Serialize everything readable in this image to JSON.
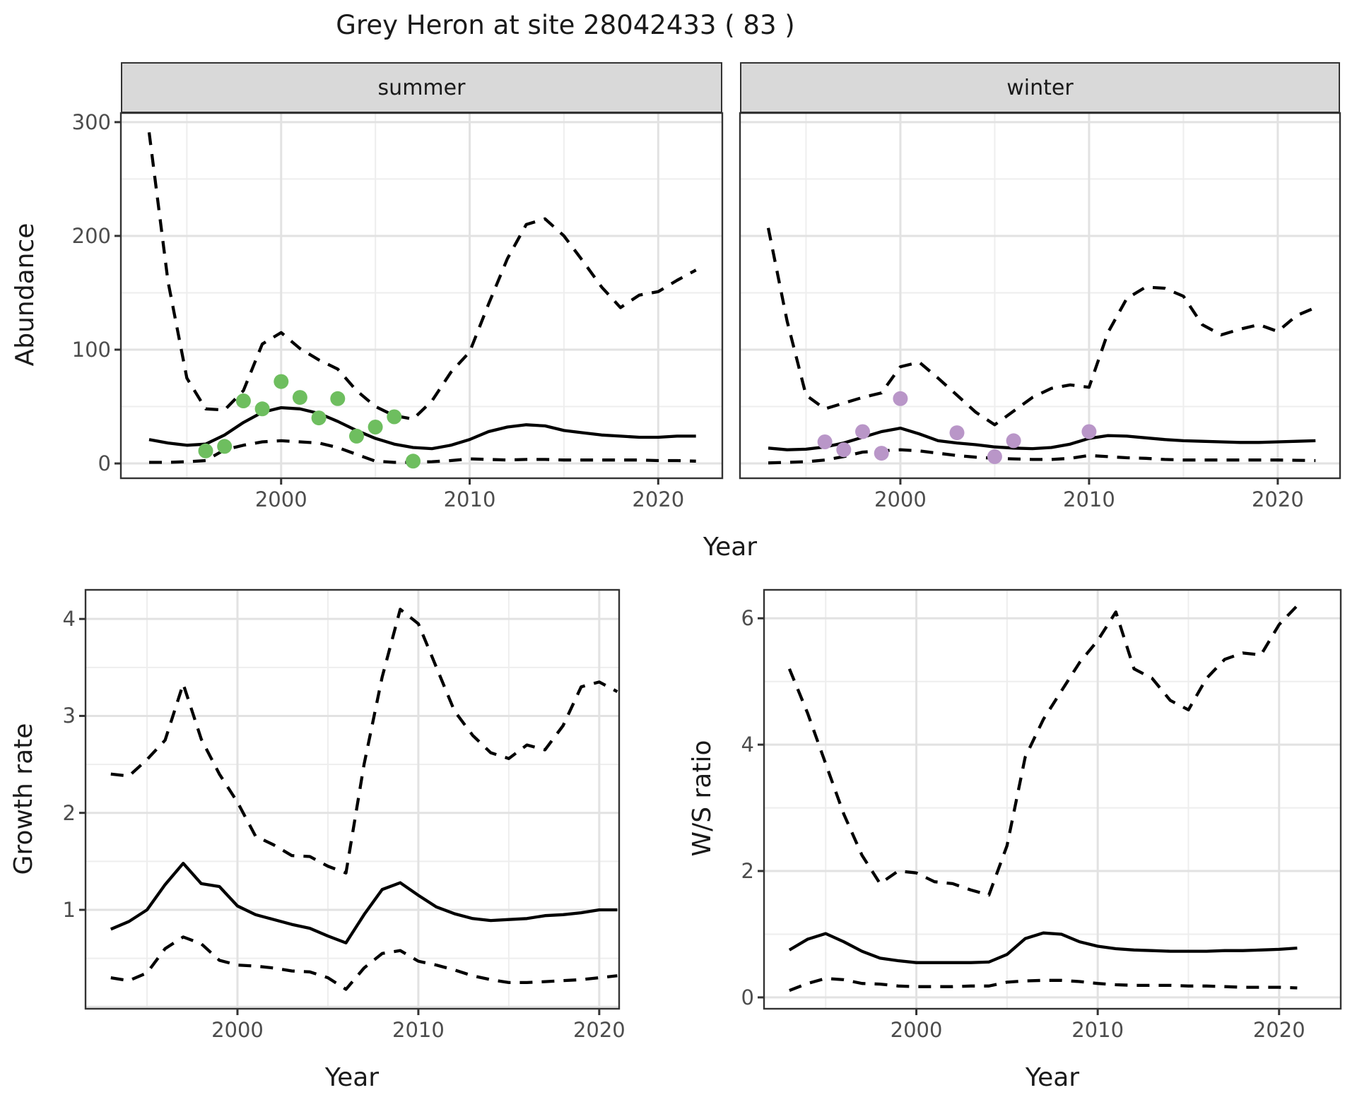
{
  "title": "Grey Heron at site 28042433 ( 83 )",
  "axes": {
    "abundance_label": "Abundance",
    "growth_label": "Growth rate",
    "ws_label": "W/S ratio",
    "year_label": "Year"
  },
  "facets": {
    "summer": "summer",
    "winter": "winter"
  },
  "colors": {
    "summer_points": "#6ebe5f",
    "winter_points": "#b996c8",
    "fit_line": "#000000",
    "ci_line": "#000000",
    "grid_major": "#e2e2e2",
    "grid_minor": "#eeeeee",
    "panel_border": "#333333",
    "strip_bg": "#d9d9d9",
    "tick_text": "#4d4d4d",
    "tick_mark": "#333333"
  },
  "chart_data": [
    {
      "id": "abundance_summer",
      "type": "line",
      "facet": "summer",
      "xlabel": "Year",
      "ylabel": "Abundance",
      "xticks": [
        2000,
        2010,
        2020
      ],
      "xminor": [
        1995,
        2005,
        2015
      ],
      "yticks": [
        0,
        100,
        200,
        300
      ],
      "ygrid": [
        0,
        100,
        200,
        300
      ],
      "yminor": [
        50,
        150,
        250
      ],
      "xlim": [
        1991.5,
        2023.4
      ],
      "ylim": [
        -13,
        308
      ],
      "years": [
        1993,
        1994,
        1995,
        1996,
        1997,
        1998,
        1999,
        2000,
        2001,
        2002,
        2003,
        2004,
        2005,
        2006,
        2007,
        2008,
        2009,
        2010,
        2011,
        2012,
        2013,
        2014,
        2015,
        2016,
        2017,
        2018,
        2019,
        2020,
        2021,
        2022
      ],
      "series": [
        {
          "name": "fitted",
          "style": "solid",
          "values": [
            21,
            18,
            16,
            17,
            25,
            36,
            45,
            49,
            48,
            44,
            37,
            29,
            22,
            17,
            14,
            13,
            16,
            21,
            28,
            32,
            34,
            33,
            29,
            27,
            25,
            24,
            23,
            23,
            24,
            24
          ]
        },
        {
          "name": "upper-ci",
          "style": "dashed",
          "values": [
            291,
            160,
            75,
            48,
            47,
            64,
            105,
            115,
            101,
            91,
            83,
            64,
            50,
            42,
            39,
            55,
            80,
            98,
            140,
            180,
            210,
            215,
            200,
            178,
            155,
            137,
            148,
            151,
            161,
            170
          ]
        },
        {
          "name": "lower-ci",
          "style": "dashed",
          "values": [
            1,
            1,
            1.5,
            2.5,
            12,
            16,
            19,
            20,
            19,
            18,
            14,
            8,
            2,
            1,
            1,
            1.5,
            2.5,
            4,
            3.5,
            3,
            3.5,
            3.5,
            3,
            3,
            3,
            3,
            3,
            2.5,
            2.5,
            2
          ]
        }
      ],
      "points": {
        "name": "observed-counts-summer",
        "color_key": "summer_points",
        "years": [
          1996,
          1997,
          1998,
          1999,
          2000,
          2001,
          2002,
          2003,
          2004,
          2005,
          2006,
          2007
        ],
        "values": [
          11,
          15,
          55,
          48,
          72,
          58,
          40,
          57,
          24,
          32,
          41,
          2
        ]
      }
    },
    {
      "id": "abundance_winter",
      "type": "line",
      "facet": "winter",
      "xlabel": "Year",
      "ylabel": "Abundance",
      "xticks": [
        2000,
        2010,
        2020
      ],
      "xminor": [
        1995,
        2005,
        2015
      ],
      "yticks": [],
      "ygrid": [
        0,
        100,
        200,
        300
      ],
      "yminor": [
        50,
        150,
        250
      ],
      "xlim": [
        1991.5,
        2023.3
      ],
      "ylim": [
        -13,
        308
      ],
      "years": [
        1993,
        1994,
        1995,
        1996,
        1997,
        1998,
        1999,
        2000,
        2001,
        2002,
        2003,
        2004,
        2005,
        2006,
        2007,
        2008,
        2009,
        2010,
        2011,
        2012,
        2013,
        2014,
        2015,
        2016,
        2017,
        2018,
        2019,
        2020,
        2021,
        2022
      ],
      "series": [
        {
          "name": "fitted",
          "style": "solid",
          "values": [
            13.5,
            12,
            12.5,
            14.5,
            18,
            23,
            28,
            31,
            26,
            20,
            18,
            16.5,
            14.5,
            13.5,
            13,
            14,
            17,
            22,
            24.5,
            24,
            22.5,
            21,
            20,
            19.5,
            19,
            18.5,
            18.5,
            19,
            19.5,
            20
          ]
        },
        {
          "name": "upper-ci",
          "style": "dashed",
          "values": [
            207,
            125,
            60,
            48,
            53,
            58,
            62,
            85,
            89,
            75,
            60,
            45,
            34,
            46,
            58,
            66,
            69,
            67,
            115,
            145,
            155,
            154,
            147,
            122,
            113,
            118,
            122,
            116,
            130,
            137
          ]
        },
        {
          "name": "lower-ci",
          "style": "dashed",
          "values": [
            0.5,
            1,
            1.5,
            3,
            6,
            10,
            11,
            12,
            11,
            9,
            7,
            5.5,
            4.5,
            4,
            3.5,
            3.5,
            4.5,
            7,
            6,
            5,
            4.5,
            3.5,
            3,
            3,
            3,
            3,
            3,
            3,
            2.8,
            2.5
          ]
        }
      ],
      "points": {
        "name": "observed-counts-winter",
        "color_key": "winter_points",
        "years": [
          1996,
          1997,
          1998,
          1999,
          2000,
          2003,
          2005,
          2006,
          2010
        ],
        "values": [
          19,
          12,
          28,
          9,
          57,
          27,
          6,
          20,
          28
        ]
      }
    },
    {
      "id": "growth_rate",
      "type": "line",
      "xlabel": "Year",
      "ylabel": "Growth rate",
      "xticks": [
        2000,
        2010,
        2020
      ],
      "xminor": [
        1995,
        2005,
        2015
      ],
      "yticks": [
        1,
        2,
        3,
        4
      ],
      "ygrid": [
        0,
        1,
        2,
        3,
        4
      ],
      "yminor": [
        0.5,
        1.5,
        2.5,
        3.5
      ],
      "xlim": [
        1991.6,
        2021.1
      ],
      "ylim": [
        -0.02,
        4.3
      ],
      "years": [
        1993,
        1994,
        1995,
        1996,
        1997,
        1998,
        1999,
        2000,
        2001,
        2002,
        2003,
        2004,
        2005,
        2006,
        2007,
        2008,
        2009,
        2010,
        2011,
        2012,
        2013,
        2014,
        2015,
        2016,
        2017,
        2018,
        2019,
        2020,
        2021
      ],
      "series": [
        {
          "name": "fitted",
          "style": "solid",
          "values": [
            0.8,
            0.88,
            1.0,
            1.26,
            1.48,
            1.27,
            1.24,
            1.04,
            0.95,
            0.9,
            0.85,
            0.81,
            0.73,
            0.66,
            0.95,
            1.21,
            1.28,
            1.15,
            1.03,
            0.96,
            0.91,
            0.89,
            0.9,
            0.91,
            0.94,
            0.95,
            0.97,
            1.0,
            1.0
          ]
        },
        {
          "name": "upper-ci",
          "style": "dashed",
          "values": [
            2.4,
            2.38,
            2.55,
            2.75,
            3.33,
            2.76,
            2.4,
            2.11,
            1.76,
            1.67,
            1.56,
            1.55,
            1.45,
            1.38,
            2.5,
            3.4,
            4.1,
            3.95,
            3.5,
            3.05,
            2.8,
            2.62,
            2.56,
            2.7,
            2.65,
            2.9,
            3.3,
            3.35,
            3.25
          ]
        },
        {
          "name": "lower-ci",
          "style": "dashed",
          "values": [
            0.3,
            0.27,
            0.35,
            0.6,
            0.72,
            0.65,
            0.48,
            0.43,
            0.42,
            0.4,
            0.37,
            0.36,
            0.3,
            0.18,
            0.4,
            0.55,
            0.58,
            0.47,
            0.43,
            0.38,
            0.32,
            0.28,
            0.25,
            0.25,
            0.26,
            0.27,
            0.28,
            0.3,
            0.32
          ]
        }
      ],
      "points": null
    },
    {
      "id": "ws_ratio",
      "type": "line",
      "xlabel": "Year",
      "ylabel": "W/S ratio",
      "xticks": [
        2000,
        2010,
        2020
      ],
      "xminor": [
        1995,
        2005,
        2015
      ],
      "yticks": [
        0,
        2,
        4,
        6
      ],
      "ygrid": [
        0,
        2,
        4,
        6
      ],
      "yminor": [
        1,
        3,
        5
      ],
      "xlim": [
        1991.6,
        2023.4
      ],
      "ylim": [
        -0.18,
        6.45
      ],
      "years": [
        1993,
        1994,
        1995,
        1996,
        1997,
        1998,
        1999,
        2000,
        2001,
        2002,
        2003,
        2004,
        2005,
        2006,
        2007,
        2008,
        2009,
        2010,
        2011,
        2012,
        2013,
        2014,
        2015,
        2016,
        2017,
        2018,
        2019,
        2020,
        2021
      ],
      "series": [
        {
          "name": "fitted",
          "style": "solid",
          "values": [
            0.75,
            0.92,
            1.01,
            0.88,
            0.73,
            0.62,
            0.58,
            0.55,
            0.55,
            0.55,
            0.55,
            0.56,
            0.68,
            0.93,
            1.02,
            1.0,
            0.88,
            0.81,
            0.77,
            0.75,
            0.74,
            0.73,
            0.73,
            0.73,
            0.74,
            0.74,
            0.75,
            0.76,
            0.78
          ]
        },
        {
          "name": "upper-ci",
          "style": "dashed",
          "values": [
            5.2,
            4.5,
            3.7,
            2.9,
            2.25,
            1.8,
            2.0,
            1.97,
            1.83,
            1.8,
            1.7,
            1.62,
            2.4,
            3.8,
            4.4,
            4.85,
            5.3,
            5.65,
            6.1,
            5.2,
            5.05,
            4.7,
            4.55,
            5.05,
            5.35,
            5.45,
            5.42,
            5.9,
            6.2
          ]
        },
        {
          "name": "lower-ci",
          "style": "dashed",
          "values": [
            0.11,
            0.22,
            0.3,
            0.28,
            0.22,
            0.21,
            0.18,
            0.17,
            0.17,
            0.17,
            0.18,
            0.18,
            0.24,
            0.26,
            0.27,
            0.27,
            0.25,
            0.22,
            0.2,
            0.19,
            0.19,
            0.19,
            0.18,
            0.18,
            0.17,
            0.16,
            0.16,
            0.16,
            0.15
          ]
        }
      ],
      "points": null
    }
  ]
}
